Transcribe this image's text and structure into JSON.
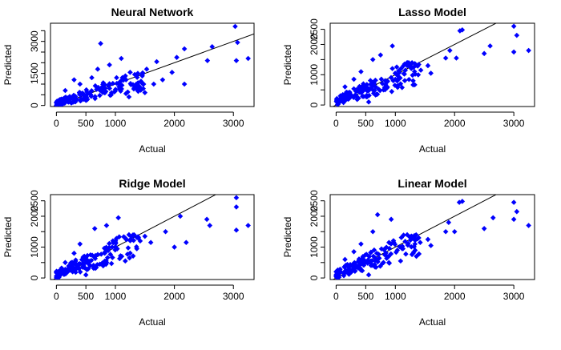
{
  "colors": {
    "points": "#0000ff",
    "line": "#000000",
    "axis": "#000000"
  },
  "chart_data": [
    {
      "type": "scatter",
      "title": "Neural Network",
      "xlabel": "Actual",
      "ylabel": "Predicted",
      "xlim": [
        -100,
        3350
      ],
      "ylim": [
        -50,
        3850
      ],
      "xticks": [
        0,
        500,
        1000,
        2000,
        3000
      ],
      "xticklabels": [
        "0",
        "500",
        "1000",
        "2000",
        "3000"
      ],
      "yticks": [
        0,
        500,
        1000,
        1500,
        2000,
        2500,
        3000,
        3500
      ],
      "yticklabels": [
        "0",
        "",
        "",
        "1500",
        "",
        "",
        "3000",
        ""
      ],
      "reference_line": {
        "intercept": 0,
        "slope": 1
      },
      "points": [
        [
          3030,
          3700
        ],
        [
          3070,
          2950
        ],
        [
          3050,
          2100
        ],
        [
          3250,
          2200
        ],
        [
          2640,
          2750
        ],
        [
          2560,
          2100
        ],
        [
          2170,
          2650
        ],
        [
          2040,
          2250
        ],
        [
          1700,
          2050
        ],
        [
          1960,
          1550
        ],
        [
          2170,
          1000
        ],
        [
          1800,
          1200
        ],
        [
          1650,
          1000
        ],
        [
          1530,
          1700
        ],
        [
          1380,
          1500
        ],
        [
          1250,
          1550
        ],
        [
          1100,
          2200
        ],
        [
          750,
          2900
        ],
        [
          900,
          1900
        ],
        [
          700,
          1700
        ],
        [
          1020,
          1300
        ],
        [
          1180,
          1200
        ],
        [
          1400,
          900
        ],
        [
          1500,
          600
        ],
        [
          1230,
          400
        ],
        [
          900,
          800
        ],
        [
          600,
          1300
        ],
        [
          400,
          1000
        ],
        [
          300,
          1200
        ],
        [
          150,
          700
        ]
      ],
      "cluster": {
        "x_range": [
          0,
          1500
        ],
        "y_range": [
          0,
          1600
        ],
        "count": 150
      }
    },
    {
      "type": "scatter",
      "title": "Lasso Model",
      "xlabel": "Actual",
      "ylabel": "Predicted",
      "xlim": [
        -100,
        3350
      ],
      "ylim": [
        -50,
        2700
      ],
      "xticks": [
        0,
        500,
        1000,
        2000,
        3000
      ],
      "xticklabels": [
        "0",
        "500",
        "1000",
        "2000",
        "3000"
      ],
      "yticks": [
        0,
        500,
        1000,
        1500,
        2000,
        2500
      ],
      "yticklabels": [
        "0",
        "",
        "1000",
        "",
        "2000",
        "2500"
      ],
      "reference_line": {
        "intercept": 0,
        "slope": 1
      },
      "points": [
        [
          3000,
          2600
        ],
        [
          3050,
          2300
        ],
        [
          3000,
          1750
        ],
        [
          3250,
          1800
        ],
        [
          2600,
          1950
        ],
        [
          2500,
          1700
        ],
        [
          2130,
          2480
        ],
        [
          2090,
          2450
        ],
        [
          1920,
          1800
        ],
        [
          2030,
          1550
        ],
        [
          1850,
          1550
        ],
        [
          1600,
          1050
        ],
        [
          1550,
          1300
        ],
        [
          1430,
          1150
        ],
        [
          1200,
          1400
        ],
        [
          950,
          1950
        ],
        [
          750,
          1650
        ],
        [
          620,
          1500
        ],
        [
          800,
          500
        ],
        [
          550,
          100
        ],
        [
          420,
          1100
        ],
        [
          300,
          850
        ],
        [
          150,
          600
        ],
        [
          1300,
          800
        ]
      ],
      "cluster": {
        "x_range": [
          0,
          1400
        ],
        "y_range": [
          -50,
          1400
        ],
        "count": 160
      }
    },
    {
      "type": "scatter",
      "title": "Ridge Model",
      "xlabel": "Actual",
      "ylabel": "Predicted",
      "xlim": [
        -100,
        3350
      ],
      "ylim": [
        -50,
        2700
      ],
      "xticks": [
        0,
        500,
        1000,
        2000,
        3000
      ],
      "xticklabels": [
        "0",
        "500",
        "1000",
        "2000",
        "3000"
      ],
      "yticks": [
        0,
        500,
        1000,
        1500,
        2000,
        2500
      ],
      "yticklabels": [
        "0",
        "",
        "1000",
        "",
        "2000",
        "2500"
      ],
      "reference_line": {
        "intercept": 0,
        "slope": 1
      },
      "points": [
        [
          3050,
          2600
        ],
        [
          3050,
          2300
        ],
        [
          3050,
          1550
        ],
        [
          3250,
          1700
        ],
        [
          2600,
          1700
        ],
        [
          2550,
          1900
        ],
        [
          2200,
          1150
        ],
        [
          2100,
          2000
        ],
        [
          1850,
          1500
        ],
        [
          2000,
          1000
        ],
        [
          1600,
          1150
        ],
        [
          1500,
          1350
        ],
        [
          1420,
          1200
        ],
        [
          1230,
          1400
        ],
        [
          1050,
          1950
        ],
        [
          850,
          1700
        ],
        [
          650,
          1600
        ],
        [
          820,
          550
        ],
        [
          500,
          100
        ],
        [
          400,
          1100
        ],
        [
          300,
          800
        ],
        [
          150,
          500
        ]
      ],
      "cluster": {
        "x_range": [
          0,
          1400
        ],
        "y_range": [
          -50,
          1400
        ],
        "count": 160
      }
    },
    {
      "type": "scatter",
      "title": "Linear Model",
      "xlabel": "Actual",
      "ylabel": "Predicted",
      "xlim": [
        -100,
        3350
      ],
      "ylim": [
        -50,
        2700
      ],
      "xticks": [
        0,
        500,
        1000,
        2000,
        3000
      ],
      "xticklabels": [
        "0",
        "500",
        "1000",
        "2000",
        "3000"
      ],
      "yticks": [
        0,
        500,
        1000,
        1500,
        2000,
        2500
      ],
      "yticklabels": [
        "0",
        "",
        "1000",
        "",
        "2000",
        "2500"
      ],
      "reference_line": {
        "intercept": 0,
        "slope": 1
      },
      "points": [
        [
          3000,
          2450
        ],
        [
          3050,
          2150
        ],
        [
          3000,
          1900
        ],
        [
          3250,
          1700
        ],
        [
          2650,
          1950
        ],
        [
          2500,
          1600
        ],
        [
          2130,
          2480
        ],
        [
          2080,
          2450
        ],
        [
          1900,
          1800
        ],
        [
          2000,
          1500
        ],
        [
          1850,
          1500
        ],
        [
          1600,
          1050
        ],
        [
          1550,
          1250
        ],
        [
          1420,
          1150
        ],
        [
          1200,
          1400
        ],
        [
          930,
          1900
        ],
        [
          700,
          2050
        ],
        [
          620,
          1500
        ],
        [
          800,
          500
        ],
        [
          550,
          100
        ],
        [
          420,
          1100
        ],
        [
          300,
          850
        ],
        [
          150,
          600
        ],
        [
          1300,
          800
        ]
      ],
      "cluster": {
        "x_range": [
          0,
          1400
        ],
        "y_range": [
          -50,
          1400
        ],
        "count": 160
      }
    }
  ]
}
